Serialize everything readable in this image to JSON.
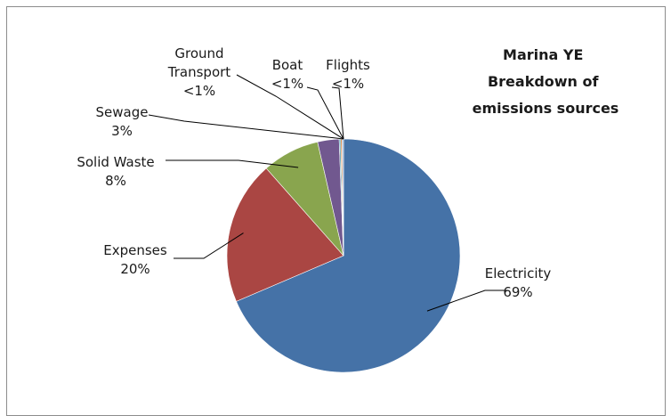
{
  "chart_data": {
    "type": "pie",
    "title": [
      "Marina YE",
      "Breakdown of",
      "emissions sources"
    ],
    "slices": [
      {
        "name": "Electricity",
        "label_lines": [
          "Electricity"
        ],
        "value_label": "69%",
        "value": 69,
        "color": "#4572a7"
      },
      {
        "name": "Expenses",
        "label_lines": [
          "Expenses"
        ],
        "value_label": "20%",
        "value": 20,
        "color": "#aa4643"
      },
      {
        "name": "Solid Waste",
        "label_lines": [
          "Solid Waste"
        ],
        "value_label": "8%",
        "value": 8,
        "color": "#89a54e"
      },
      {
        "name": "Sewage",
        "label_lines": [
          "Sewage"
        ],
        "value_label": "3%",
        "value": 3,
        "color": "#71588f"
      },
      {
        "name": "Ground Transport",
        "label_lines": [
          "Ground",
          "Transport"
        ],
        "value_label": "<1%",
        "value": 0.2,
        "color": "#4198af"
      },
      {
        "name": "Boat",
        "label_lines": [
          "Boat"
        ],
        "value_label": "<1%",
        "value": 0.2,
        "color": "#db843d"
      },
      {
        "name": "Flights",
        "label_lines": [
          "Flights"
        ],
        "value_label": "<1%",
        "value": 0.2,
        "color": "#93a9cf"
      }
    ],
    "legend": "none"
  }
}
